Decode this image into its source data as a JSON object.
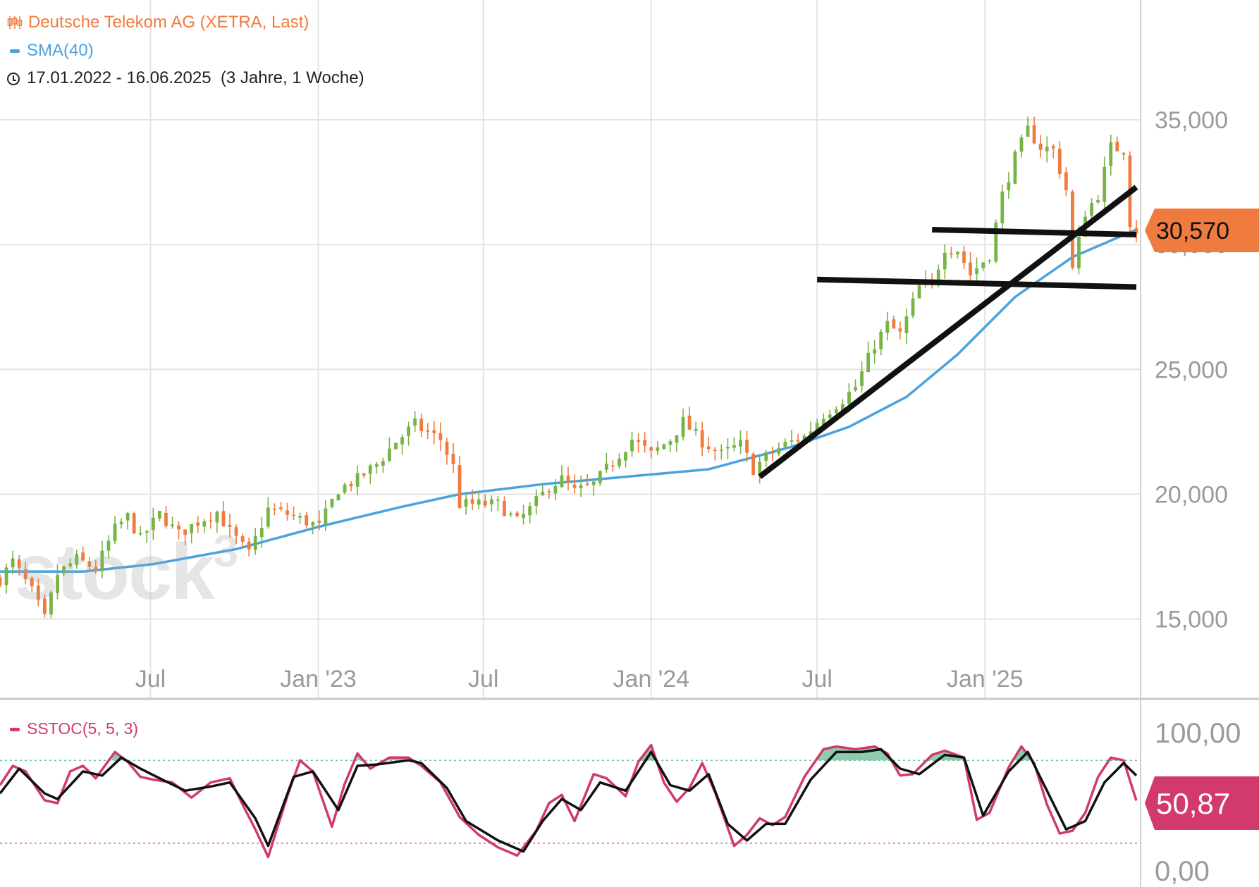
{
  "header": {
    "price_legend": "Deutsche Telekom AG (XETRA, Last)",
    "sma_legend": "SMA(40)",
    "date_range": "17.01.2022 - 16.06.2025",
    "period": "(3 Jahre, 1 Woche)",
    "stoch_legend": "SSTOC(5, 5, 3)"
  },
  "watermark": "stock",
  "watermark_sup": "3",
  "colors": {
    "up": "#77b446",
    "down": "#f07b3f",
    "sma": "#4aa3df",
    "stoch_k": "#d23a6b",
    "stoch_d": "#111111",
    "badge_price": "#f07b3f",
    "badge_stoch": "#d23a6b",
    "grid": "#e4e4e4",
    "axis_text": "#9a9a9a"
  },
  "chart_data": [
    {
      "type": "candlestick",
      "title": "Deutsche Telekom AG (XETRA, Last)",
      "series_names": [
        "Deutsche Telekom AG (XETRA, Last)",
        "SMA(40)"
      ],
      "xlim": [
        "2022-01-17",
        "2025-06-16"
      ],
      "ylim": [
        11.8,
        39.8
      ],
      "x_ticks": [
        {
          "date": "2022-07-01",
          "label": "Jul"
        },
        {
          "date": "2023-01-01",
          "label": "Jan '23"
        },
        {
          "date": "2023-07-01",
          "label": "Jul"
        },
        {
          "date": "2024-01-01",
          "label": "Jan '24"
        },
        {
          "date": "2024-07-01",
          "label": "Jul"
        },
        {
          "date": "2025-01-01",
          "label": "Jan '25"
        }
      ],
      "y_ticks": [
        {
          "value": 15,
          "label": "15,000"
        },
        {
          "value": 20,
          "label": "20,000"
        },
        {
          "value": 25,
          "label": "25,000"
        },
        {
          "value": 30,
          "label": "30,000"
        },
        {
          "value": 35,
          "label": "35,000"
        }
      ],
      "last_value": 30.57,
      "last_label": "30,570",
      "price_anchors": [
        [
          "2022-01-17",
          16.6
        ],
        [
          "2022-01-31",
          17.3
        ],
        [
          "2022-02-21",
          16.1
        ],
        [
          "2022-03-07",
          15.0
        ],
        [
          "2022-03-21",
          16.8
        ],
        [
          "2022-04-11",
          17.4
        ],
        [
          "2022-05-02",
          17.0
        ],
        [
          "2022-05-23",
          18.6
        ],
        [
          "2022-06-06",
          19.1
        ],
        [
          "2022-06-20",
          18.2
        ],
        [
          "2022-07-11",
          19.2
        ],
        [
          "2022-08-01",
          18.4
        ],
        [
          "2022-08-22",
          18.9
        ],
        [
          "2022-09-12",
          19.3
        ],
        [
          "2022-09-26",
          18.5
        ],
        [
          "2022-10-17",
          17.6
        ],
        [
          "2022-11-07",
          19.4
        ],
        [
          "2022-11-28",
          19.2
        ],
        [
          "2022-12-12",
          19.0
        ],
        [
          "2023-01-02",
          18.7
        ],
        [
          "2023-01-23",
          20.2
        ],
        [
          "2023-02-13",
          20.6
        ],
        [
          "2023-03-06",
          21.2
        ],
        [
          "2023-03-27",
          22.1
        ],
        [
          "2023-04-17",
          22.8
        ],
        [
          "2023-04-24",
          22.6
        ],
        [
          "2023-05-15",
          22.2
        ],
        [
          "2023-05-29",
          21.1
        ],
        [
          "2023-06-05",
          19.6
        ],
        [
          "2023-06-26",
          19.6
        ],
        [
          "2023-07-17",
          19.6
        ],
        [
          "2023-08-07",
          18.9
        ],
        [
          "2023-08-21",
          19.4
        ],
        [
          "2023-09-11",
          20.3
        ],
        [
          "2023-09-25",
          20.6
        ],
        [
          "2023-10-09",
          20.1
        ],
        [
          "2023-10-30",
          20.4
        ],
        [
          "2023-11-20",
          21.3
        ],
        [
          "2023-12-11",
          22.2
        ],
        [
          "2024-01-01",
          21.6
        ],
        [
          "2024-01-22",
          22.2
        ],
        [
          "2024-02-05",
          22.9
        ],
        [
          "2024-02-26",
          22.1
        ],
        [
          "2024-03-18",
          21.6
        ],
        [
          "2024-04-08",
          22.0
        ],
        [
          "2024-04-22",
          21.0
        ],
        [
          "2024-05-06",
          21.5
        ],
        [
          "2024-05-27",
          22.0
        ],
        [
          "2024-06-17",
          22.3
        ],
        [
          "2024-07-08",
          23.2
        ],
        [
          "2024-07-29",
          23.8
        ],
        [
          "2024-08-12",
          24.3
        ],
        [
          "2024-09-02",
          26.0
        ],
        [
          "2024-09-16",
          26.8
        ],
        [
          "2024-09-30",
          26.4
        ],
        [
          "2024-10-21",
          28.3
        ],
        [
          "2024-11-04",
          28.4
        ],
        [
          "2024-11-18",
          29.9
        ],
        [
          "2024-12-02",
          29.8
        ],
        [
          "2024-12-16",
          28.8
        ],
        [
          "2025-01-06",
          29.6
        ],
        [
          "2025-01-20",
          32.0
        ],
        [
          "2025-02-03",
          33.5
        ],
        [
          "2025-02-17",
          34.6
        ],
        [
          "2025-03-03",
          33.9
        ],
        [
          "2025-03-17",
          33.8
        ],
        [
          "2025-03-31",
          32.2
        ],
        [
          "2025-04-07",
          29.0
        ],
        [
          "2025-04-21",
          31.3
        ],
        [
          "2025-05-05",
          32.0
        ],
        [
          "2025-05-19",
          33.9
        ],
        [
          "2025-06-02",
          33.8
        ],
        [
          "2025-06-09",
          30.9
        ],
        [
          "2025-06-16",
          30.57
        ]
      ],
      "sma_anchors": [
        [
          "2022-01-17",
          16.9
        ],
        [
          "2022-04-18",
          16.9
        ],
        [
          "2022-07-04",
          17.2
        ],
        [
          "2022-10-03",
          17.8
        ],
        [
          "2023-01-02",
          18.7
        ],
        [
          "2023-04-03",
          19.5
        ],
        [
          "2023-06-05",
          20.0
        ],
        [
          "2023-09-04",
          20.4
        ],
        [
          "2023-12-04",
          20.7
        ],
        [
          "2024-03-04",
          21.0
        ],
        [
          "2024-06-03",
          21.9
        ],
        [
          "2024-08-05",
          22.7
        ],
        [
          "2024-10-07",
          23.9
        ],
        [
          "2024-12-02",
          25.6
        ],
        [
          "2025-02-03",
          27.9
        ],
        [
          "2025-04-07",
          29.5
        ],
        [
          "2025-06-16",
          30.6
        ]
      ],
      "trendlines": [
        {
          "from": [
            "2024-04-29",
            20.7
          ],
          "to": [
            "2025-06-16",
            32.3
          ]
        },
        {
          "from": [
            "2024-07-01",
            28.6
          ],
          "to": [
            "2025-06-16",
            28.3
          ]
        },
        {
          "from": [
            "2024-11-04",
            30.6
          ],
          "to": [
            "2025-06-16",
            30.4
          ]
        }
      ]
    },
    {
      "type": "line",
      "title": "SSTOC(5, 5, 3)",
      "ylim": [
        0,
        100
      ],
      "y_ticks": [
        {
          "value": 0,
          "label": "0,00"
        },
        {
          "value": 100,
          "label": "100,00"
        }
      ],
      "overbought": 80,
      "oversold": 20,
      "last_value": 50.87,
      "last_label": "50,87",
      "k_anchors": [
        [
          "2022-01-17",
          62
        ],
        [
          "2022-01-31",
          76
        ],
        [
          "2022-02-14",
          72
        ],
        [
          "2022-03-07",
          51
        ],
        [
          "2022-03-21",
          49
        ],
        [
          "2022-04-04",
          72
        ],
        [
          "2022-04-18",
          76
        ],
        [
          "2022-05-02",
          67
        ],
        [
          "2022-05-23",
          86
        ],
        [
          "2022-06-06",
          79
        ],
        [
          "2022-06-20",
          68
        ],
        [
          "2022-07-04",
          66
        ],
        [
          "2022-07-25",
          64
        ],
        [
          "2022-08-15",
          53
        ],
        [
          "2022-09-05",
          64
        ],
        [
          "2022-09-26",
          67
        ],
        [
          "2022-10-10",
          48
        ],
        [
          "2022-10-24",
          30
        ],
        [
          "2022-11-07",
          10
        ],
        [
          "2022-11-28",
          54
        ],
        [
          "2022-12-12",
          80
        ],
        [
          "2022-12-26",
          72
        ],
        [
          "2023-01-16",
          32
        ],
        [
          "2023-01-30",
          63
        ],
        [
          "2023-02-13",
          85
        ],
        [
          "2023-02-27",
          74
        ],
        [
          "2023-03-20",
          82
        ],
        [
          "2023-04-10",
          82
        ],
        [
          "2023-04-24",
          76
        ],
        [
          "2023-05-15",
          64
        ],
        [
          "2023-06-05",
          39
        ],
        [
          "2023-06-26",
          26
        ],
        [
          "2023-07-17",
          17
        ],
        [
          "2023-08-07",
          11
        ],
        [
          "2023-08-28",
          29
        ],
        [
          "2023-09-11",
          49
        ],
        [
          "2023-09-25",
          55
        ],
        [
          "2023-10-09",
          36
        ],
        [
          "2023-10-30",
          70
        ],
        [
          "2023-11-13",
          67
        ],
        [
          "2023-12-04",
          54
        ],
        [
          "2023-12-18",
          79
        ],
        [
          "2024-01-01",
          91
        ],
        [
          "2024-01-15",
          64
        ],
        [
          "2024-01-29",
          50
        ],
        [
          "2024-02-12",
          60
        ],
        [
          "2024-02-26",
          78
        ],
        [
          "2024-03-11",
          57
        ],
        [
          "2024-04-01",
          18
        ],
        [
          "2024-04-15",
          26
        ],
        [
          "2024-04-29",
          38
        ],
        [
          "2024-05-13",
          33
        ],
        [
          "2024-05-27",
          39
        ],
        [
          "2024-06-17",
          68
        ],
        [
          "2024-07-08",
          88
        ],
        [
          "2024-07-22",
          90
        ],
        [
          "2024-08-12",
          88
        ],
        [
          "2024-09-02",
          90
        ],
        [
          "2024-09-16",
          85
        ],
        [
          "2024-09-30",
          69
        ],
        [
          "2024-10-14",
          70
        ],
        [
          "2024-11-04",
          84
        ],
        [
          "2024-11-18",
          87
        ],
        [
          "2024-12-09",
          82
        ],
        [
          "2024-12-23",
          37
        ],
        [
          "2025-01-06",
          42
        ],
        [
          "2025-01-27",
          75
        ],
        [
          "2025-02-10",
          90
        ],
        [
          "2025-02-24",
          78
        ],
        [
          "2025-03-10",
          48
        ],
        [
          "2025-03-24",
          27
        ],
        [
          "2025-04-07",
          29
        ],
        [
          "2025-04-21",
          42
        ],
        [
          "2025-05-05",
          68
        ],
        [
          "2025-05-19",
          82
        ],
        [
          "2025-06-02",
          80
        ],
        [
          "2025-06-16",
          50.87
        ]
      ],
      "d_anchors": [
        [
          "2022-01-17",
          56
        ],
        [
          "2022-02-07",
          74
        ],
        [
          "2022-03-07",
          56
        ],
        [
          "2022-03-21",
          52
        ],
        [
          "2022-04-18",
          72
        ],
        [
          "2022-05-09",
          69
        ],
        [
          "2022-05-30",
          82
        ],
        [
          "2022-06-20",
          74
        ],
        [
          "2022-07-11",
          67
        ],
        [
          "2022-08-08",
          58
        ],
        [
          "2022-09-05",
          61
        ],
        [
          "2022-09-26",
          64
        ],
        [
          "2022-10-24",
          38
        ],
        [
          "2022-11-07",
          18
        ],
        [
          "2022-12-05",
          68
        ],
        [
          "2022-12-26",
          72
        ],
        [
          "2023-01-23",
          44
        ],
        [
          "2023-02-13",
          76
        ],
        [
          "2023-03-06",
          77
        ],
        [
          "2023-04-10",
          80
        ],
        [
          "2023-04-24",
          78
        ],
        [
          "2023-05-22",
          60
        ],
        [
          "2023-06-12",
          36
        ],
        [
          "2023-07-17",
          22
        ],
        [
          "2023-08-14",
          14
        ],
        [
          "2023-09-04",
          36
        ],
        [
          "2023-09-25",
          52
        ],
        [
          "2023-10-16",
          44
        ],
        [
          "2023-11-06",
          64
        ],
        [
          "2023-12-04",
          58
        ],
        [
          "2024-01-01",
          86
        ],
        [
          "2024-01-22",
          62
        ],
        [
          "2024-02-12",
          58
        ],
        [
          "2024-03-04",
          70
        ],
        [
          "2024-03-25",
          34
        ],
        [
          "2024-04-15",
          22
        ],
        [
          "2024-05-06",
          34
        ],
        [
          "2024-05-27",
          34
        ],
        [
          "2024-06-24",
          66
        ],
        [
          "2024-07-22",
          86
        ],
        [
          "2024-08-19",
          86
        ],
        [
          "2024-09-09",
          88
        ],
        [
          "2024-09-30",
          74
        ],
        [
          "2024-10-21",
          70
        ],
        [
          "2024-11-18",
          84
        ],
        [
          "2024-12-09",
          82
        ],
        [
          "2024-12-30",
          40
        ],
        [
          "2025-01-27",
          72
        ],
        [
          "2025-02-17",
          86
        ],
        [
          "2025-03-10",
          58
        ],
        [
          "2025-03-31",
          30
        ],
        [
          "2025-04-21",
          36
        ],
        [
          "2025-05-12",
          64
        ],
        [
          "2025-06-02",
          78
        ],
        [
          "2025-06-16",
          69
        ]
      ]
    }
  ]
}
